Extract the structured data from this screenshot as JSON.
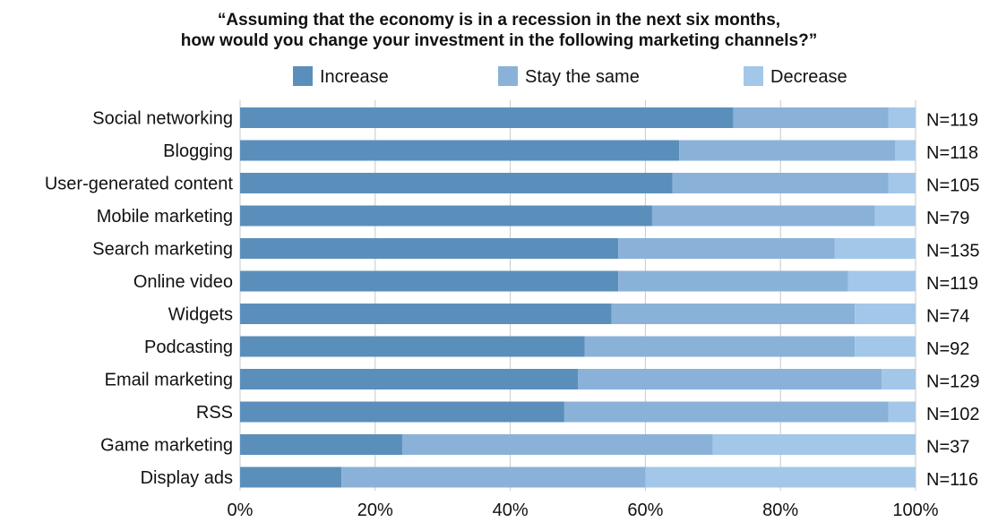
{
  "chart_data": {
    "type": "bar",
    "orientation": "horizontal",
    "stacked": true,
    "title_lines": [
      "“Assuming that the economy is in a recession in the next six months,",
      "how would you change your investment in the following marketing channels?”"
    ],
    "categories": [
      "Social networking",
      "Blogging",
      "User-generated content",
      "Mobile marketing",
      "Search marketing",
      "Online video",
      "Widgets",
      "Podcasting",
      "Email marketing",
      "RSS",
      "Game marketing",
      "Display ads"
    ],
    "n_labels": [
      "N=119",
      "N=118",
      "N=105",
      "N=79",
      "N=135",
      "N=119",
      "N=74",
      "N=92",
      "N=129",
      "N=102",
      "N=37",
      "N=116"
    ],
    "series": [
      {
        "name": "Increase",
        "color": "#5b8fbb",
        "values": [
          73,
          65,
          64,
          61,
          56,
          56,
          55,
          51,
          50,
          48,
          24,
          15
        ]
      },
      {
        "name": "Stay the same",
        "color": "#8ab2d9",
        "values": [
          23,
          32,
          32,
          33,
          32,
          34,
          36,
          40,
          45,
          48,
          46,
          45
        ]
      },
      {
        "name": "Decrease",
        "color": "#a2c7e9",
        "values": [
          4,
          3,
          4,
          6,
          12,
          10,
          9,
          9,
          5,
          4,
          30,
          40
        ]
      }
    ],
    "x_ticks": [
      "0%",
      "20%",
      "40%",
      "60%",
      "80%",
      "100%"
    ],
    "xlim": [
      0,
      100
    ],
    "grid": "vertical",
    "legend_position": "top"
  }
}
